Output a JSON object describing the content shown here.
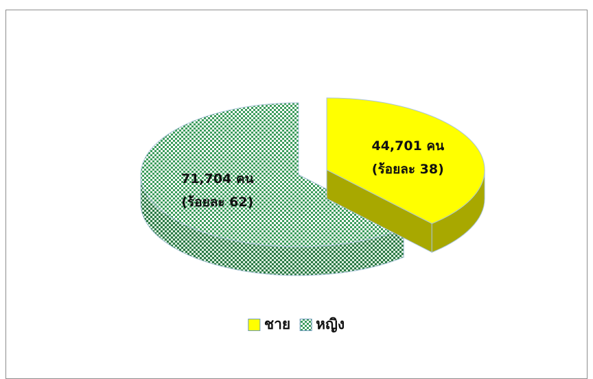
{
  "chart_data": {
    "type": "pie3d",
    "categories": [
      "ชาย",
      "หญิง"
    ],
    "values": [
      44701,
      71704
    ],
    "value_labels": [
      "44,701 คน",
      "71,704 คน"
    ],
    "percent_labels": [
      "(ร้อยละ 38)",
      "(ร้อยละ 62)"
    ],
    "colors": [
      "#ffff00",
      "#3c9c5c"
    ],
    "legend": "bottom"
  }
}
